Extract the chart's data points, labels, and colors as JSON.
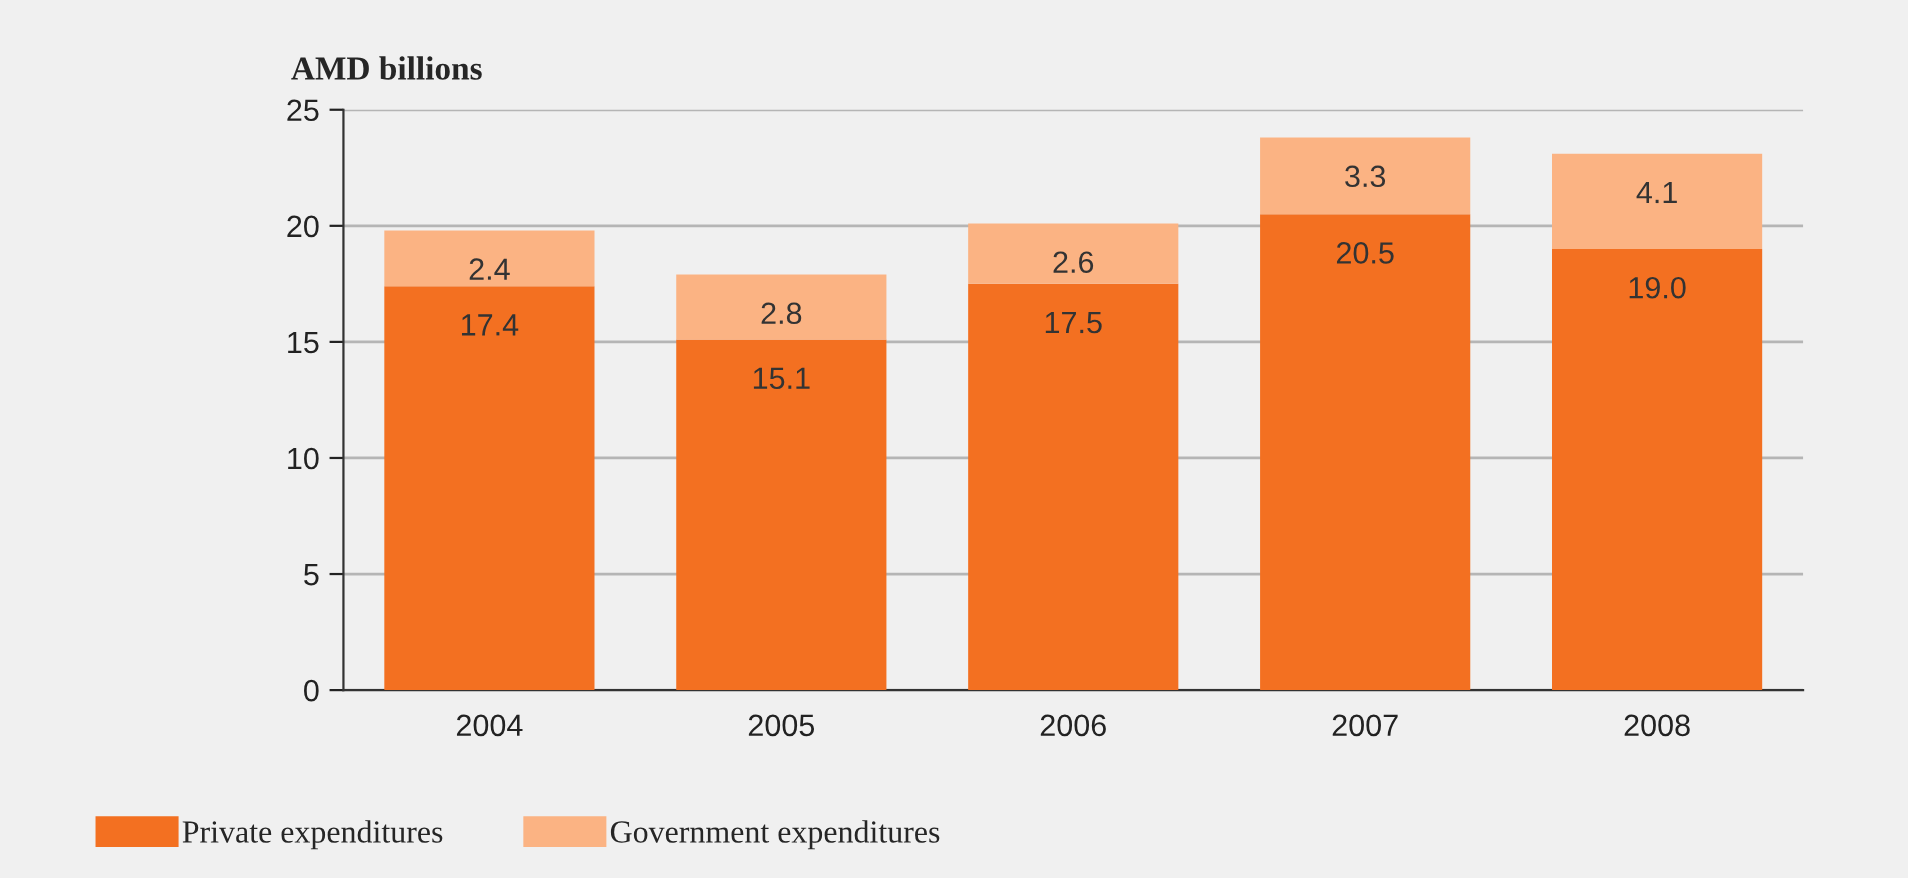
{
  "chart_data": {
    "type": "bar",
    "ylabel": "AMD billions",
    "categories": [
      "2004",
      "2005",
      "2006",
      "2007",
      "2008"
    ],
    "series": [
      {
        "name": "Private expenditures",
        "color": "#f37021",
        "values": [
          17.4,
          15.1,
          17.5,
          20.5,
          19.0
        ],
        "value_labels": [
          "17.4",
          "15.1",
          "17.5",
          "20.5",
          "19.0"
        ]
      },
      {
        "name": "Government expenditures",
        "color": "#fbb383",
        "values": [
          2.4,
          2.8,
          2.6,
          3.3,
          4.1
        ],
        "value_labels": [
          "2.4",
          "2.8",
          "2.6",
          "3.3",
          "4.1"
        ]
      }
    ],
    "stacked": true,
    "ylim": [
      0,
      25
    ],
    "yticks": [
      0,
      5,
      10,
      15,
      20,
      25
    ],
    "grid": "y",
    "legend": "bottom"
  }
}
